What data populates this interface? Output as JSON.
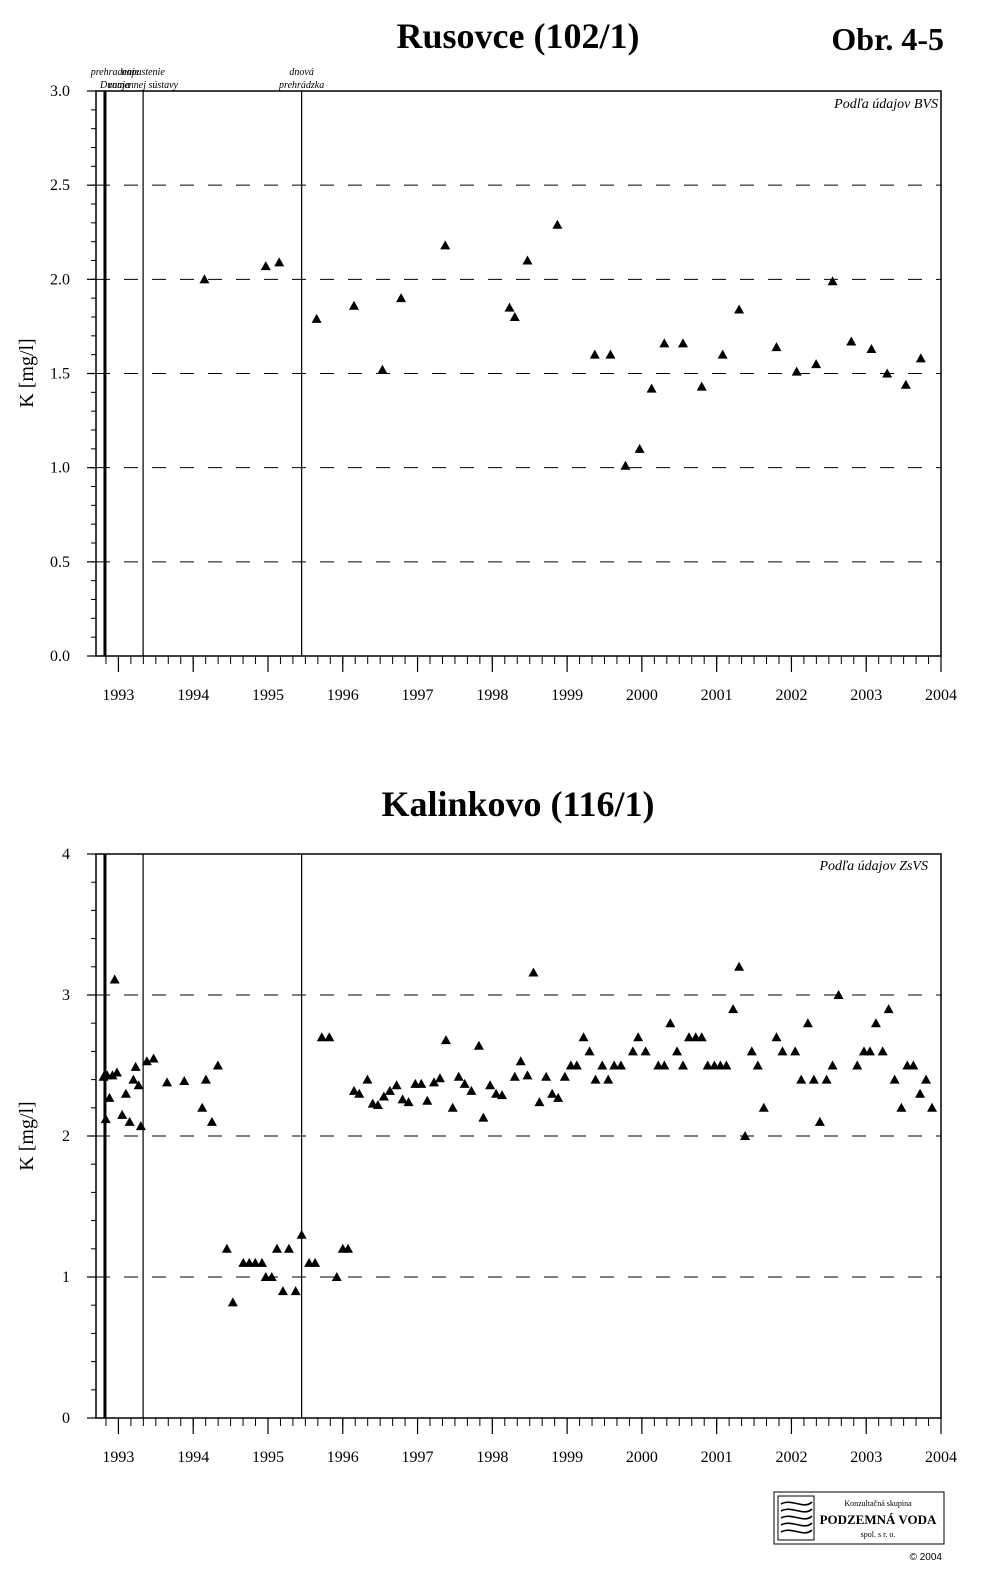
{
  "figure_label": "Obr. 4-5",
  "chart_data": [
    {
      "type": "scatter",
      "title": "Rusovce (102/1)",
      "ylabel": "K  [mg/l]",
      "xlabel": "",
      "source_note": "Podľa údajov BVS",
      "ylim": [
        0,
        3
      ],
      "xlim": [
        1992.7,
        2004.0
      ],
      "yticks": [
        0,
        0.5,
        1,
        1.5,
        2,
        2.5,
        3
      ],
      "ytick_labels": [
        "0.0",
        "0.5",
        "1.0",
        "1.5",
        "2.0",
        "2.5",
        "3.0"
      ],
      "xticks": [
        1993,
        1994,
        1995,
        1996,
        1997,
        1998,
        1999,
        2000,
        2001,
        2002,
        2003,
        2004
      ],
      "xtick_labels": [
        "1993",
        "1994",
        "1995",
        "1996",
        "1997",
        "1998",
        "1999",
        "2000",
        "2001",
        "2002",
        "2003",
        "2004"
      ],
      "grid": "horizontal dashed",
      "marker": "triangle",
      "events": [
        {
          "x": 1992.82,
          "label_lines": [
            "prehradenie",
            "Dunaja"
          ]
        },
        {
          "x": 1993.33,
          "label_lines": [
            "napustenie",
            "ramennej sústavy"
          ]
        },
        {
          "x": 1995.45,
          "label_lines": [
            "dnová",
            "prehrádzka"
          ]
        }
      ],
      "points": [
        {
          "x": 1994.15,
          "y": 2.0
        },
        {
          "x": 1994.97,
          "y": 2.07
        },
        {
          "x": 1995.15,
          "y": 2.09
        },
        {
          "x": 1995.65,
          "y": 1.79
        },
        {
          "x": 1996.15,
          "y": 1.86
        },
        {
          "x": 1996.53,
          "y": 1.52
        },
        {
          "x": 1996.78,
          "y": 1.9
        },
        {
          "x": 1997.37,
          "y": 2.18
        },
        {
          "x": 1998.23,
          "y": 1.85
        },
        {
          "x": 1998.3,
          "y": 1.8
        },
        {
          "x": 1998.47,
          "y": 2.1
        },
        {
          "x": 1998.87,
          "y": 2.29
        },
        {
          "x": 1999.37,
          "y": 1.6
        },
        {
          "x": 1999.58,
          "y": 1.6
        },
        {
          "x": 1999.78,
          "y": 1.01
        },
        {
          "x": 1999.97,
          "y": 1.1
        },
        {
          "x": 2000.13,
          "y": 1.42
        },
        {
          "x": 2000.3,
          "y": 1.66
        },
        {
          "x": 2000.55,
          "y": 1.66
        },
        {
          "x": 2000.8,
          "y": 1.43
        },
        {
          "x": 2001.08,
          "y": 1.6
        },
        {
          "x": 2001.3,
          "y": 1.84
        },
        {
          "x": 2001.8,
          "y": 1.64
        },
        {
          "x": 2002.07,
          "y": 1.51
        },
        {
          "x": 2002.33,
          "y": 1.55
        },
        {
          "x": 2002.55,
          "y": 1.99
        },
        {
          "x": 2002.8,
          "y": 1.67
        },
        {
          "x": 2003.07,
          "y": 1.63
        },
        {
          "x": 2003.28,
          "y": 1.5
        },
        {
          "x": 2003.53,
          "y": 1.44
        },
        {
          "x": 2003.73,
          "y": 1.58
        }
      ]
    },
    {
      "type": "scatter",
      "title": "Kalinkovo (116/1)",
      "ylabel": "K  [mg/l]",
      "xlabel": "",
      "source_note": "Podľa údajov ZsVS",
      "ylim": [
        0,
        4
      ],
      "xlim": [
        1992.7,
        2004.0
      ],
      "yticks": [
        0,
        1,
        2,
        3,
        4
      ],
      "ytick_labels": [
        "0",
        "1",
        "2",
        "3",
        "4"
      ],
      "xticks": [
        1993,
        1994,
        1995,
        1996,
        1997,
        1998,
        1999,
        2000,
        2001,
        2002,
        2003,
        2004
      ],
      "xtick_labels": [
        "1993",
        "1994",
        "1995",
        "1996",
        "1997",
        "1998",
        "1999",
        "2000",
        "2001",
        "2002",
        "2003",
        "2004"
      ],
      "grid": "horizontal dashed",
      "marker": "triangle",
      "events": [
        {
          "x": 1992.82,
          "label_lines": []
        },
        {
          "x": 1993.33,
          "label_lines": []
        },
        {
          "x": 1995.45,
          "label_lines": []
        }
      ],
      "points": [
        {
          "x": 1992.8,
          "y": 2.42
        },
        {
          "x": 1992.83,
          "y": 2.12
        },
        {
          "x": 1992.85,
          "y": 2.43
        },
        {
          "x": 1992.88,
          "y": 2.27
        },
        {
          "x": 1992.92,
          "y": 2.43
        },
        {
          "x": 1992.95,
          "y": 3.11
        },
        {
          "x": 1992.98,
          "y": 2.45
        },
        {
          "x": 1993.05,
          "y": 2.15
        },
        {
          "x": 1993.1,
          "y": 2.3
        },
        {
          "x": 1993.15,
          "y": 2.1
        },
        {
          "x": 1993.2,
          "y": 2.4
        },
        {
          "x": 1993.23,
          "y": 2.49
        },
        {
          "x": 1993.27,
          "y": 2.36
        },
        {
          "x": 1993.3,
          "y": 2.07
        },
        {
          "x": 1993.38,
          "y": 2.53
        },
        {
          "x": 1993.47,
          "y": 2.55
        },
        {
          "x": 1993.65,
          "y": 2.38
        },
        {
          "x": 1993.88,
          "y": 2.39
        },
        {
          "x": 1994.12,
          "y": 2.2
        },
        {
          "x": 1994.17,
          "y": 2.4
        },
        {
          "x": 1994.25,
          "y": 2.1
        },
        {
          "x": 1994.33,
          "y": 2.5
        },
        {
          "x": 1994.45,
          "y": 1.2
        },
        {
          "x": 1994.53,
          "y": 0.82
        },
        {
          "x": 1994.67,
          "y": 1.1
        },
        {
          "x": 1994.75,
          "y": 1.1
        },
        {
          "x": 1994.83,
          "y": 1.1
        },
        {
          "x": 1994.92,
          "y": 1.1
        },
        {
          "x": 1994.97,
          "y": 1.0
        },
        {
          "x": 1995.05,
          "y": 1.0
        },
        {
          "x": 1995.12,
          "y": 1.2
        },
        {
          "x": 1995.2,
          "y": 0.9
        },
        {
          "x": 1995.28,
          "y": 1.2
        },
        {
          "x": 1995.37,
          "y": 0.9
        },
        {
          "x": 1995.45,
          "y": 1.3
        },
        {
          "x": 1995.55,
          "y": 1.1
        },
        {
          "x": 1995.63,
          "y": 1.1
        },
        {
          "x": 1995.72,
          "y": 2.7
        },
        {
          "x": 1995.82,
          "y": 2.7
        },
        {
          "x": 1995.92,
          "y": 1.0
        },
        {
          "x": 1996.0,
          "y": 1.2
        },
        {
          "x": 1996.07,
          "y": 1.2
        },
        {
          "x": 1996.15,
          "y": 2.32
        },
        {
          "x": 1996.22,
          "y": 2.3
        },
        {
          "x": 1996.33,
          "y": 2.4
        },
        {
          "x": 1996.4,
          "y": 2.23
        },
        {
          "x": 1996.47,
          "y": 2.22
        },
        {
          "x": 1996.55,
          "y": 2.28
        },
        {
          "x": 1996.63,
          "y": 2.32
        },
        {
          "x": 1996.72,
          "y": 2.36
        },
        {
          "x": 1996.8,
          "y": 2.26
        },
        {
          "x": 1996.88,
          "y": 2.24
        },
        {
          "x": 1996.97,
          "y": 2.37
        },
        {
          "x": 1997.05,
          "y": 2.37
        },
        {
          "x": 1997.13,
          "y": 2.25
        },
        {
          "x": 1997.22,
          "y": 2.38
        },
        {
          "x": 1997.3,
          "y": 2.41
        },
        {
          "x": 1997.38,
          "y": 2.68
        },
        {
          "x": 1997.47,
          "y": 2.2
        },
        {
          "x": 1997.55,
          "y": 2.42
        },
        {
          "x": 1997.63,
          "y": 2.37
        },
        {
          "x": 1997.72,
          "y": 2.32
        },
        {
          "x": 1997.82,
          "y": 2.64
        },
        {
          "x": 1997.88,
          "y": 2.13
        },
        {
          "x": 1997.97,
          "y": 2.36
        },
        {
          "x": 1998.05,
          "y": 2.3
        },
        {
          "x": 1998.13,
          "y": 2.29
        },
        {
          "x": 1998.3,
          "y": 2.42
        },
        {
          "x": 1998.38,
          "y": 2.53
        },
        {
          "x": 1998.47,
          "y": 2.43
        },
        {
          "x": 1998.55,
          "y": 3.16
        },
        {
          "x": 1998.63,
          "y": 2.24
        },
        {
          "x": 1998.72,
          "y": 2.42
        },
        {
          "x": 1998.8,
          "y": 2.3
        },
        {
          "x": 1998.88,
          "y": 2.27
        },
        {
          "x": 1998.97,
          "y": 2.42
        },
        {
          "x": 1999.05,
          "y": 2.5
        },
        {
          "x": 1999.13,
          "y": 2.5
        },
        {
          "x": 1999.22,
          "y": 2.7
        },
        {
          "x": 1999.3,
          "y": 2.6
        },
        {
          "x": 1999.38,
          "y": 2.4
        },
        {
          "x": 1999.47,
          "y": 2.5
        },
        {
          "x": 1999.55,
          "y": 2.4
        },
        {
          "x": 1999.63,
          "y": 2.5
        },
        {
          "x": 1999.72,
          "y": 2.5
        },
        {
          "x": 1999.88,
          "y": 2.6
        },
        {
          "x": 1999.95,
          "y": 2.7
        },
        {
          "x": 2000.05,
          "y": 2.6
        },
        {
          "x": 2000.22,
          "y": 2.5
        },
        {
          "x": 2000.3,
          "y": 2.5
        },
        {
          "x": 2000.38,
          "y": 2.8
        },
        {
          "x": 2000.47,
          "y": 2.6
        },
        {
          "x": 2000.55,
          "y": 2.5
        },
        {
          "x": 2000.63,
          "y": 2.7
        },
        {
          "x": 2000.72,
          "y": 2.7
        },
        {
          "x": 2000.8,
          "y": 2.7
        },
        {
          "x": 2000.88,
          "y": 2.5
        },
        {
          "x": 2000.97,
          "y": 2.5
        },
        {
          "x": 2001.05,
          "y": 2.5
        },
        {
          "x": 2001.13,
          "y": 2.5
        },
        {
          "x": 2001.22,
          "y": 2.9
        },
        {
          "x": 2001.3,
          "y": 3.2
        },
        {
          "x": 2001.38,
          "y": 2.0
        },
        {
          "x": 2001.47,
          "y": 2.6
        },
        {
          "x": 2001.55,
          "y": 2.5
        },
        {
          "x": 2001.63,
          "y": 2.2
        },
        {
          "x": 2001.8,
          "y": 2.7
        },
        {
          "x": 2001.88,
          "y": 2.6
        },
        {
          "x": 2002.05,
          "y": 2.6
        },
        {
          "x": 2002.13,
          "y": 2.4
        },
        {
          "x": 2002.22,
          "y": 2.8
        },
        {
          "x": 2002.3,
          "y": 2.4
        },
        {
          "x": 2002.38,
          "y": 2.1
        },
        {
          "x": 2002.47,
          "y": 2.4
        },
        {
          "x": 2002.55,
          "y": 2.5
        },
        {
          "x": 2002.63,
          "y": 3.0
        },
        {
          "x": 2002.88,
          "y": 2.5
        },
        {
          "x": 2002.97,
          "y": 2.6
        },
        {
          "x": 2003.05,
          "y": 2.6
        },
        {
          "x": 2003.13,
          "y": 2.8
        },
        {
          "x": 2003.22,
          "y": 2.6
        },
        {
          "x": 2003.3,
          "y": 2.9
        },
        {
          "x": 2003.38,
          "y": 2.4
        },
        {
          "x": 2003.47,
          "y": 2.2
        },
        {
          "x": 2003.55,
          "y": 2.5
        },
        {
          "x": 2003.63,
          "y": 2.5
        },
        {
          "x": 2003.72,
          "y": 2.3
        },
        {
          "x": 2003.8,
          "y": 2.4
        },
        {
          "x": 2003.88,
          "y": 2.2
        }
      ]
    }
  ],
  "logo": {
    "line1": "Konzultačná skupina",
    "line2": "PODZEMNÁ VODA",
    "line3": "spol. s r. o."
  },
  "copyright": "© 2004"
}
